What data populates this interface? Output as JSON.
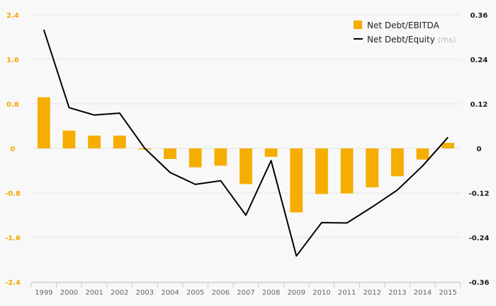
{
  "chart_data": {
    "type": "bar",
    "categories": [
      "1999",
      "2000",
      "2001",
      "2002",
      "2003",
      "2004",
      "2005",
      "2006",
      "2007",
      "2008",
      "2009",
      "2010",
      "2011",
      "2012",
      "2013",
      "2014",
      "2015"
    ],
    "series": [
      {
        "name": "Net Debt/EBITDA",
        "type": "bar",
        "axis": "left",
        "color": "#f5ae00",
        "values": [
          0.92,
          0.32,
          0.23,
          0.23,
          -0.02,
          -0.19,
          -0.34,
          -0.31,
          -0.64,
          -0.15,
          -1.15,
          -0.82,
          -0.81,
          -0.7,
          -0.5,
          -0.2,
          0.1
        ]
      },
      {
        "name": "Net Debt/Equity",
        "name_suffix": "(rhs)",
        "type": "line",
        "axis": "right",
        "color": "#000000",
        "values": [
          0.32,
          0.11,
          0.09,
          0.095,
          0.0,
          -0.065,
          -0.097,
          -0.087,
          -0.18,
          -0.033,
          -0.29,
          -0.2,
          -0.201,
          -0.158,
          -0.112,
          -0.047,
          0.03
        ]
      }
    ],
    "y_left": {
      "ylim": [
        -2.4,
        2.4
      ],
      "ticks": [
        2.4,
        1.6,
        0.8,
        0,
        -0.8,
        -1.6,
        -2.4
      ],
      "tick_labels": [
        "2.4",
        "1.6",
        "0.8",
        "0",
        "-0.8",
        "-1.6",
        "-2.4"
      ]
    },
    "y_right": {
      "ylim": [
        -0.36,
        0.36
      ],
      "ticks": [
        0.36,
        0.24,
        0.12,
        0,
        -0.12,
        -0.24,
        -0.36
      ],
      "tick_labels": [
        "0.36",
        "0.24",
        "0.12",
        "0",
        "-0.12",
        "-0.24",
        "-0.36"
      ]
    },
    "legend_position": "top-right",
    "grid": true,
    "title": "",
    "xlabel": "",
    "ylabel": ""
  }
}
